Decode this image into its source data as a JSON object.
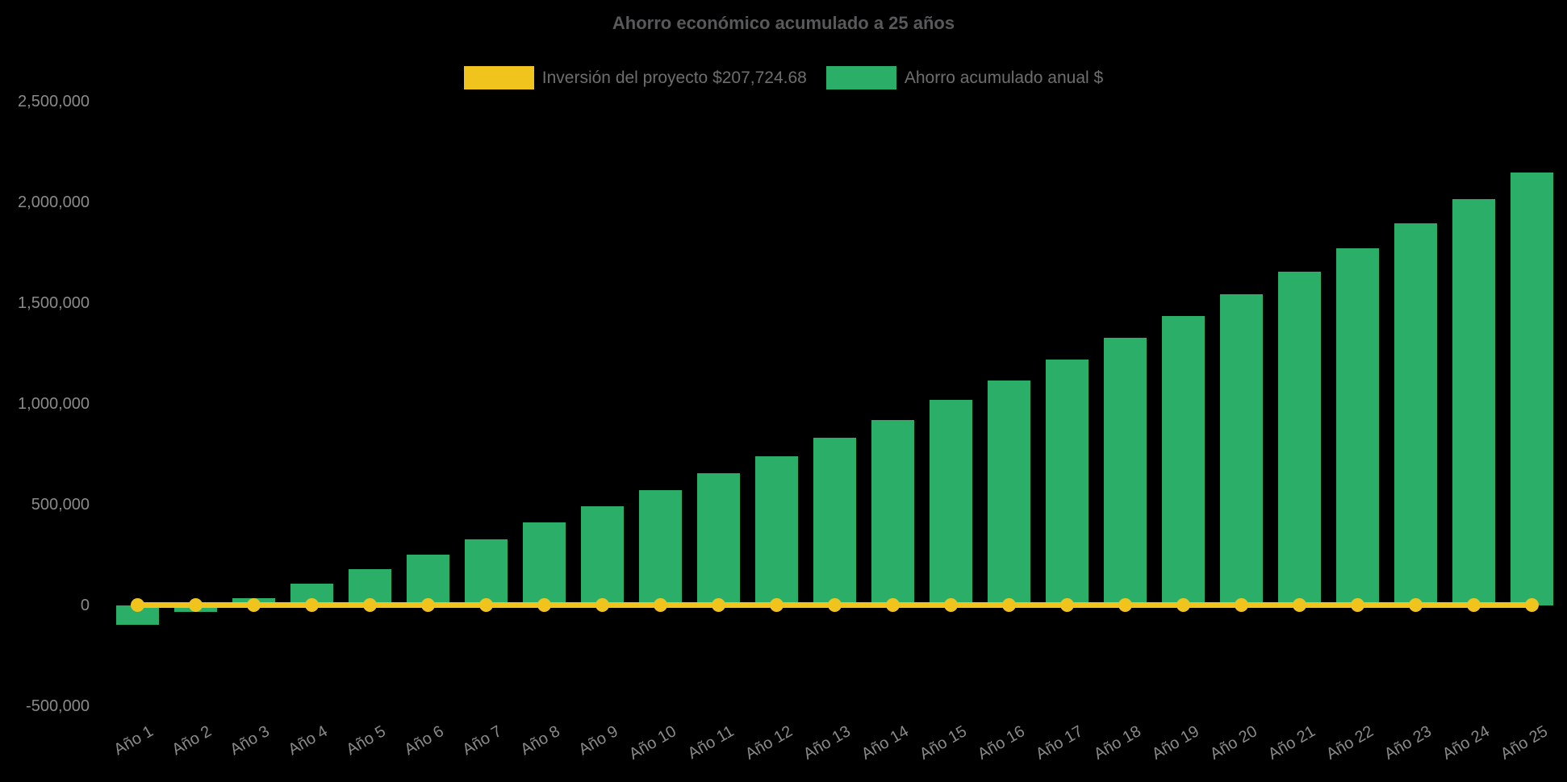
{
  "title": "Ahorro económico acumulado a 25 años",
  "legend": {
    "items": [
      {
        "label": "Inversión del proyecto $207,724.68",
        "color": "#f0c41d"
      },
      {
        "label": "Ahorro acumulado anual $",
        "color": "#2aae68"
      }
    ]
  },
  "colors": {
    "background": "#000000",
    "bar": "#2aae68",
    "line": "#f0c41d",
    "title_text": "#58595b",
    "legend_text": "#6e6e6e",
    "tick_text": "#8a8a8a"
  },
  "chart_data": {
    "type": "bar",
    "title": "Ahorro económico acumulado a 25 años",
    "categories": [
      "Año 1",
      "Año 2",
      "Año 3",
      "Año 4",
      "Año 5",
      "Año 6",
      "Año 7",
      "Año 8",
      "Año 9",
      "Año 10",
      "Año 11",
      "Año 12",
      "Año 13",
      "Año 14",
      "Año 15",
      "Año 16",
      "Año 17",
      "Año 18",
      "Año 19",
      "Año 20",
      "Año 21",
      "Año 22",
      "Año 23",
      "Año 24",
      "Año 25"
    ],
    "series": [
      {
        "name": "Inversión del proyecto $207,724.68",
        "type": "line",
        "color": "#f0c41d",
        "point_style": "circle",
        "values": [
          0,
          0,
          0,
          0,
          0,
          0,
          0,
          0,
          0,
          0,
          0,
          0,
          0,
          0,
          0,
          0,
          0,
          0,
          0,
          0,
          0,
          0,
          0,
          0,
          0
        ]
      },
      {
        "name": "Ahorro acumulado anual $",
        "type": "bar",
        "color": "#2aae68",
        "values": [
          -94000,
          -33000,
          38000,
          107000,
          181000,
          253000,
          327000,
          411000,
          491000,
          571000,
          655000,
          740000,
          831000,
          920000,
          1020000,
          1117000,
          1220000,
          1327000,
          1435000,
          1544000,
          1657000,
          1771000,
          1895000,
          2017000,
          2148000
        ]
      }
    ],
    "xlabel": "",
    "ylabel": "",
    "ylim": [
      -500000,
      2500000
    ],
    "ytick_step": 500000,
    "yticks": [
      {
        "value": 2500000,
        "label": "2,500,000"
      },
      {
        "value": 2000000,
        "label": "2,000,000"
      },
      {
        "value": 1500000,
        "label": "1,500,000"
      },
      {
        "value": 1000000,
        "label": "1,000,000"
      },
      {
        "value": 500000,
        "label": "500,000"
      },
      {
        "value": 0,
        "label": "0"
      },
      {
        "value": -500000,
        "label": "-500,000"
      }
    ],
    "grid": false,
    "legend_position": "top",
    "x_tick_rotation_deg": -30,
    "background": "#000000"
  }
}
